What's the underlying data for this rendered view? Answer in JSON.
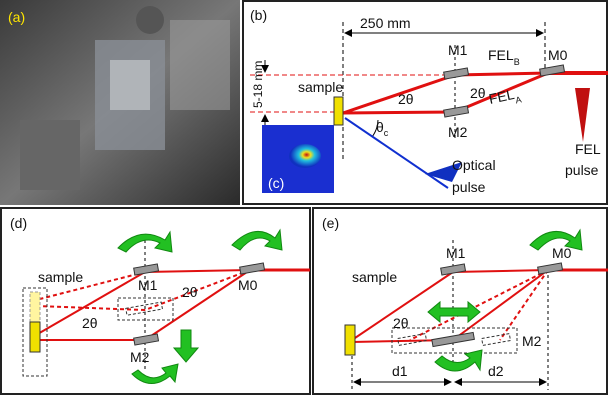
{
  "panels": {
    "a": {
      "label": "(a)"
    },
    "b": {
      "label": "(b)",
      "distance": "250 mm",
      "m1": "M1",
      "fel_b": "FEL",
      "fel_b_sub": "B",
      "m0": "M0",
      "sample": "sample",
      "angle_top": "2θ",
      "angle_right": "2θ",
      "gap": "5-18 mm",
      "m2": "M2",
      "fel_a": "FEL",
      "fel_a_sub": "A",
      "theta": "θ",
      "theta_sub": "c",
      "fel_pulse": [
        "FEL",
        "pulse"
      ],
      "optical_pulse": [
        "Optical",
        "pulse"
      ],
      "inset": "(c)"
    },
    "d": {
      "label": "(d)",
      "m1": "M1",
      "m0": "M0",
      "sample": "sample",
      "angle_right": "2θ",
      "angle_left": "2θ",
      "m2": "M2"
    },
    "e": {
      "label": "(e)",
      "m1": "M1",
      "m0": "M0",
      "sample": "sample",
      "angle": "2θ",
      "m2": "M2",
      "d1": "d1",
      "d2": "d2"
    }
  }
}
